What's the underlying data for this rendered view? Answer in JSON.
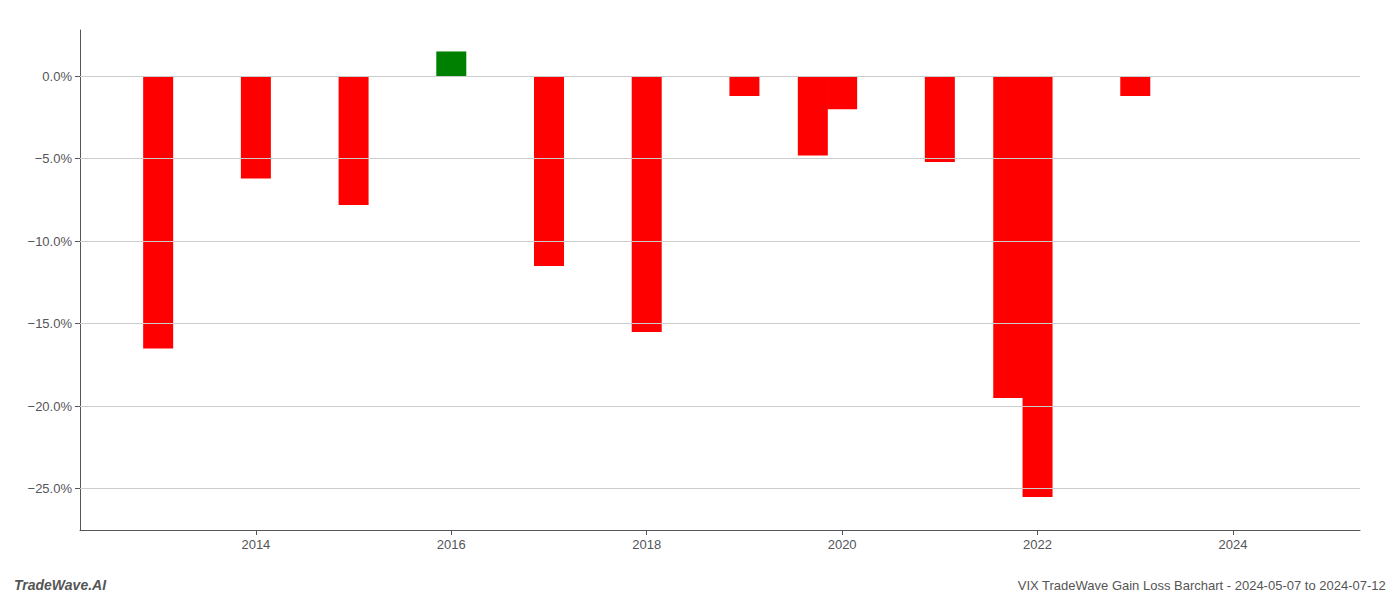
{
  "chart_data": {
    "type": "bar",
    "x": [
      2013,
      2014,
      2015,
      2016,
      2017,
      2018,
      2019,
      2019.7,
      2020,
      2021,
      2021.7,
      2022,
      2023,
      2023.7
    ],
    "values": [
      -16.5,
      -6.2,
      -7.8,
      1.5,
      -11.5,
      -15.5,
      -1.2,
      -4.8,
      -2.0,
      -5.2,
      -19.5,
      -25.5,
      -1.2,
      0.0
    ],
    "colors": [
      "#ff0000",
      "#ff0000",
      "#ff0000",
      "#008000",
      "#ff0000",
      "#ff0000",
      "#ff0000",
      "#ff0000",
      "#ff0000",
      "#ff0000",
      "#ff0000",
      "#ff0000",
      "#ff0000",
      "#ff0000"
    ],
    "xlim": [
      2012.2,
      2025.3
    ],
    "xticks": [
      2014,
      2016,
      2018,
      2020,
      2022,
      2024
    ],
    "ylim": [
      -27.5,
      2.8
    ],
    "yticks": [
      {
        "value": 0.0,
        "label": "0.0%"
      },
      {
        "value": -5.0,
        "label": "−5.0%"
      },
      {
        "value": -10.0,
        "label": "−10.0%"
      },
      {
        "value": -15.0,
        "label": "−15.0%"
      },
      {
        "value": -20.0,
        "label": "−20.0%"
      },
      {
        "value": -25.0,
        "label": "−25.0%"
      }
    ],
    "grid": true,
    "annotations": [
      "TradeWave.AI",
      "VIX TradeWave Gain Loss Barchart - 2024-05-07 to 2024-07-12"
    ]
  }
}
